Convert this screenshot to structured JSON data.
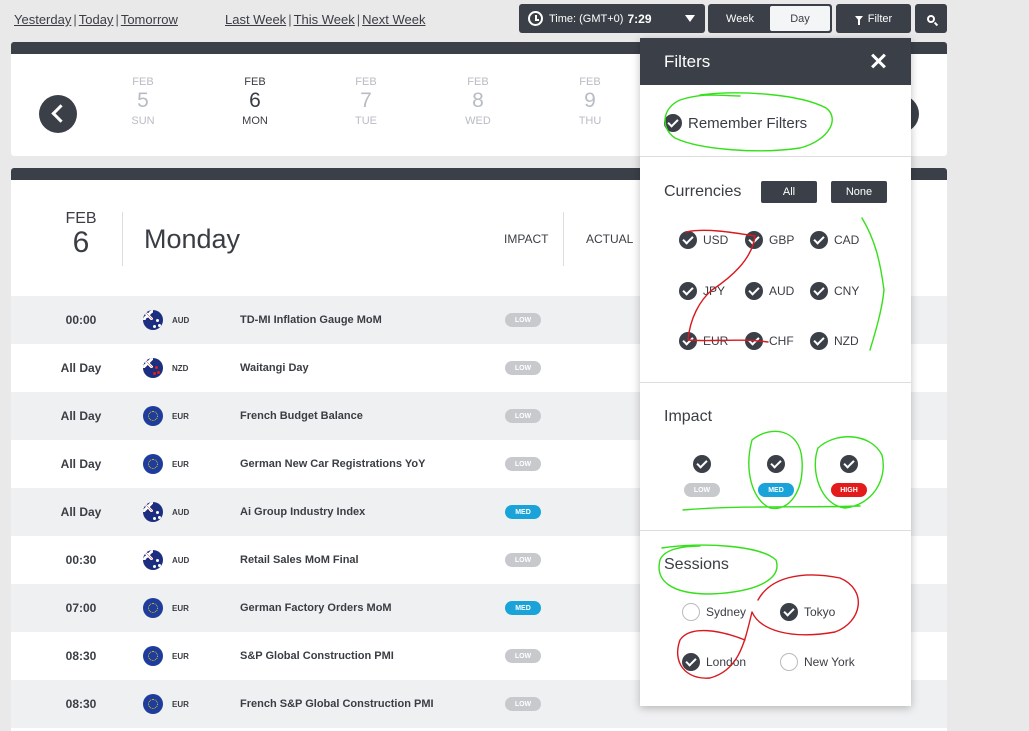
{
  "nav": {
    "yesterday": "Yesterday",
    "today": "Today",
    "tomorrow": "Tomorrow",
    "last_week": "Last Week",
    "this_week": "This Week",
    "next_week": "Next Week",
    "sep": "|"
  },
  "toolbar": {
    "time_label": "Time: (GMT+0)",
    "time_value": "7:29",
    "week": "Week",
    "day": "Day",
    "filter": "Filter"
  },
  "dates": [
    {
      "month": "FEB",
      "day": "5",
      "weekday": "SUN"
    },
    {
      "month": "FEB",
      "day": "6",
      "weekday": "MON"
    },
    {
      "month": "FEB",
      "day": "7",
      "weekday": "TUE"
    },
    {
      "month": "FEB",
      "day": "8",
      "weekday": "WED"
    },
    {
      "month": "FEB",
      "day": "9",
      "weekday": "THU"
    }
  ],
  "header": {
    "month": "FEB",
    "day": "6",
    "dayname": "Monday",
    "impact": "IMPACT",
    "actual": "ACTUAL"
  },
  "events": [
    {
      "time": "00:00",
      "currency": "AUD",
      "name": "TD-MI Inflation Gauge MoM",
      "impact": "LOW"
    },
    {
      "time": "All Day",
      "currency": "NZD",
      "name": "Waitangi Day",
      "impact": "LOW"
    },
    {
      "time": "All Day",
      "currency": "EUR",
      "name": "French Budget Balance",
      "impact": "LOW"
    },
    {
      "time": "All Day",
      "currency": "EUR",
      "name": "German New Car Registrations YoY",
      "impact": "LOW"
    },
    {
      "time": "All Day",
      "currency": "AUD",
      "name": "Ai Group Industry Index",
      "impact": "MED"
    },
    {
      "time": "00:30",
      "currency": "AUD",
      "name": "Retail Sales MoM Final",
      "impact": "LOW"
    },
    {
      "time": "07:00",
      "currency": "EUR",
      "name": "German Factory Orders MoM",
      "impact": "MED"
    },
    {
      "time": "08:30",
      "currency": "EUR",
      "name": "S&P Global Construction PMI",
      "impact": "LOW"
    },
    {
      "time": "08:30",
      "currency": "EUR",
      "name": "French S&P Global Construction PMI",
      "impact": "LOW"
    }
  ],
  "filters": {
    "title": "Filters",
    "remember": "Remember Filters",
    "currencies_title": "Currencies",
    "all": "All",
    "none": "None",
    "currencies": [
      "USD",
      "GBP",
      "CAD",
      "JPY",
      "AUD",
      "CNY",
      "EUR",
      "CHF",
      "NZD"
    ],
    "impact_title": "Impact",
    "impacts": [
      "LOW",
      "MED",
      "HIGH"
    ],
    "sessions_title": "Sessions",
    "sessions": [
      {
        "label": "Sydney",
        "checked": false
      },
      {
        "label": "Tokyo",
        "checked": true
      },
      {
        "label": "London",
        "checked": true
      },
      {
        "label": "New York",
        "checked": false
      }
    ]
  },
  "colors": {
    "dark": "#3b3f47",
    "low": "#c7c9cd",
    "med": "#1aa3d9",
    "high": "#e31b1b",
    "annot_green": "#35e01a",
    "annot_red": "#d8191f"
  }
}
